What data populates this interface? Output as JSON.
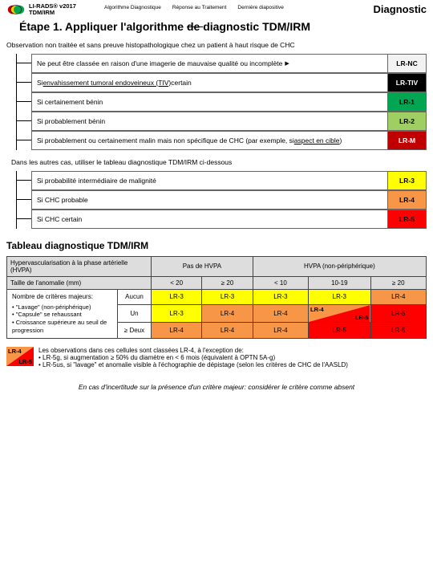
{
  "header": {
    "logo_title1": "LI-RADS® v2017",
    "logo_title2": "TDM/IRM",
    "tabs": [
      "Algorithme Diagnostique",
      "Réponse au Traitement",
      "Dernière diapositive"
    ],
    "right_label": "Diagnostic"
  },
  "step_title_pre": "Étape 1. Appliquer l'algorithme ",
  "step_title_strike": "de ",
  "step_title_post": "diagnostic TDM/IRM",
  "obs_text": "Observation non traitée et sans preuve histopathologique chez un patient à haut risque de CHC",
  "rows1": [
    {
      "text": "Ne peut être classée en raison d'une imagerie de mauvaise qualité ou incomplète",
      "badge": "LR-NC",
      "bg": "#f2f2f2",
      "fg": "#000",
      "arrow": true
    },
    {
      "pre": "Si ",
      "underline": "envahissement tumoral endoveineux (TIV)",
      "post": " certain",
      "badge": "LR-TIV",
      "bg": "#000000",
      "fg": "#ffffff"
    },
    {
      "text": "Si certainement bénin",
      "badge": "LR-1",
      "bg": "#00a651",
      "fg": "#000"
    },
    {
      "text": "Si probablement bénin",
      "badge": "LR-2",
      "bg": "#9fce63",
      "fg": "#000"
    },
    {
      "pre": "Si probablement ou certainement malin mais non spécifique de CHC (par exemple, si ",
      "underline": "aspect en cible",
      "post": ")",
      "badge": "LR-M",
      "bg": "#c00000",
      "fg": "#ffffff"
    }
  ],
  "mid_text": "Dans les autres cas, utiliser le tableau diagnostique TDM/IRM ci-dessous",
  "rows2": [
    {
      "text": "Si probabilité intermédiaire de malignité",
      "badge": "LR-3",
      "bg": "#ffff00",
      "fg": "#000"
    },
    {
      "text": "Si CHC probable",
      "badge": "LR-4",
      "bg": "#f79646",
      "fg": "#000"
    },
    {
      "text": "Si CHC certain",
      "badge": "LR-5",
      "bg": "#ff0000",
      "fg": "#000"
    }
  ],
  "table_title": "Tableau diagnostique TDM/IRM",
  "table": {
    "r1c1": "Hypervascularisation à la phase artérielle (HVPA)",
    "r1c2": "Pas de HVPA",
    "r1c3": "HVPA (non-périphérique)",
    "r2c1": "Taille de l'anomalie (mm)",
    "r2c2": "< 20",
    "r2c3": "≥ 20",
    "r2c4": "< 10",
    "r2c5": "10-19",
    "r2c6": "≥ 20",
    "left_hdr": "Nombre de critères majeurs:",
    "bullets": [
      "\"Lavage\" (non-périphérique)",
      "\"Capsule\" se rehaussant",
      "Croissance supérieure au seuil de progression"
    ],
    "row_a": {
      "label": "Aucun",
      "c": [
        "LR-3",
        "LR-3",
        "LR-3",
        "LR-3",
        "LR-4"
      ],
      "bg": [
        "#ffff00",
        "#ffff00",
        "#ffff00",
        "#ffff00",
        "#f79646"
      ]
    },
    "row_b": {
      "label": "Un",
      "c": [
        "LR-3",
        "LR-4",
        "LR-4",
        "LR-4",
        "LR-5"
      ],
      "bg": [
        "#ffff00",
        "#f79646",
        "#f79646",
        "split",
        "#ff0000"
      ]
    },
    "row_c": {
      "label": "≥ Deux",
      "c": [
        "LR-4",
        "LR-4",
        "LR-4",
        "LR-5",
        "LR-5"
      ],
      "bg": [
        "#f79646",
        "#f79646",
        "#f79646",
        "#ff0000",
        "#ff0000"
      ]
    },
    "split": {
      "tl": "LR-4",
      "br": "LR-5",
      "tl_bg": "#f79646",
      "br_bg": "#ff0000"
    }
  },
  "footnote": {
    "badge_top": "LR-4",
    "badge_top_bg": "#f79646",
    "badge_bot": "LR-5",
    "badge_bot_bg": "#ff0000",
    "line1": "Les observations dans ces cellules sont classées LR-4, à l'exception de:",
    "line2": "• LR-5g, si augmentation ≥ 50% du diamètre en < 6 mois (équivalent à OPTN 5A-g)",
    "line3": "• LR-5us, si \"lavage\" et anomalie visible à l'échographie de dépistage (selon les critères de CHC de l'AASLD)"
  },
  "footer_italic": "En cas d'incertitude sur la présence d'un critère majeur: considérer le critère comme absent"
}
